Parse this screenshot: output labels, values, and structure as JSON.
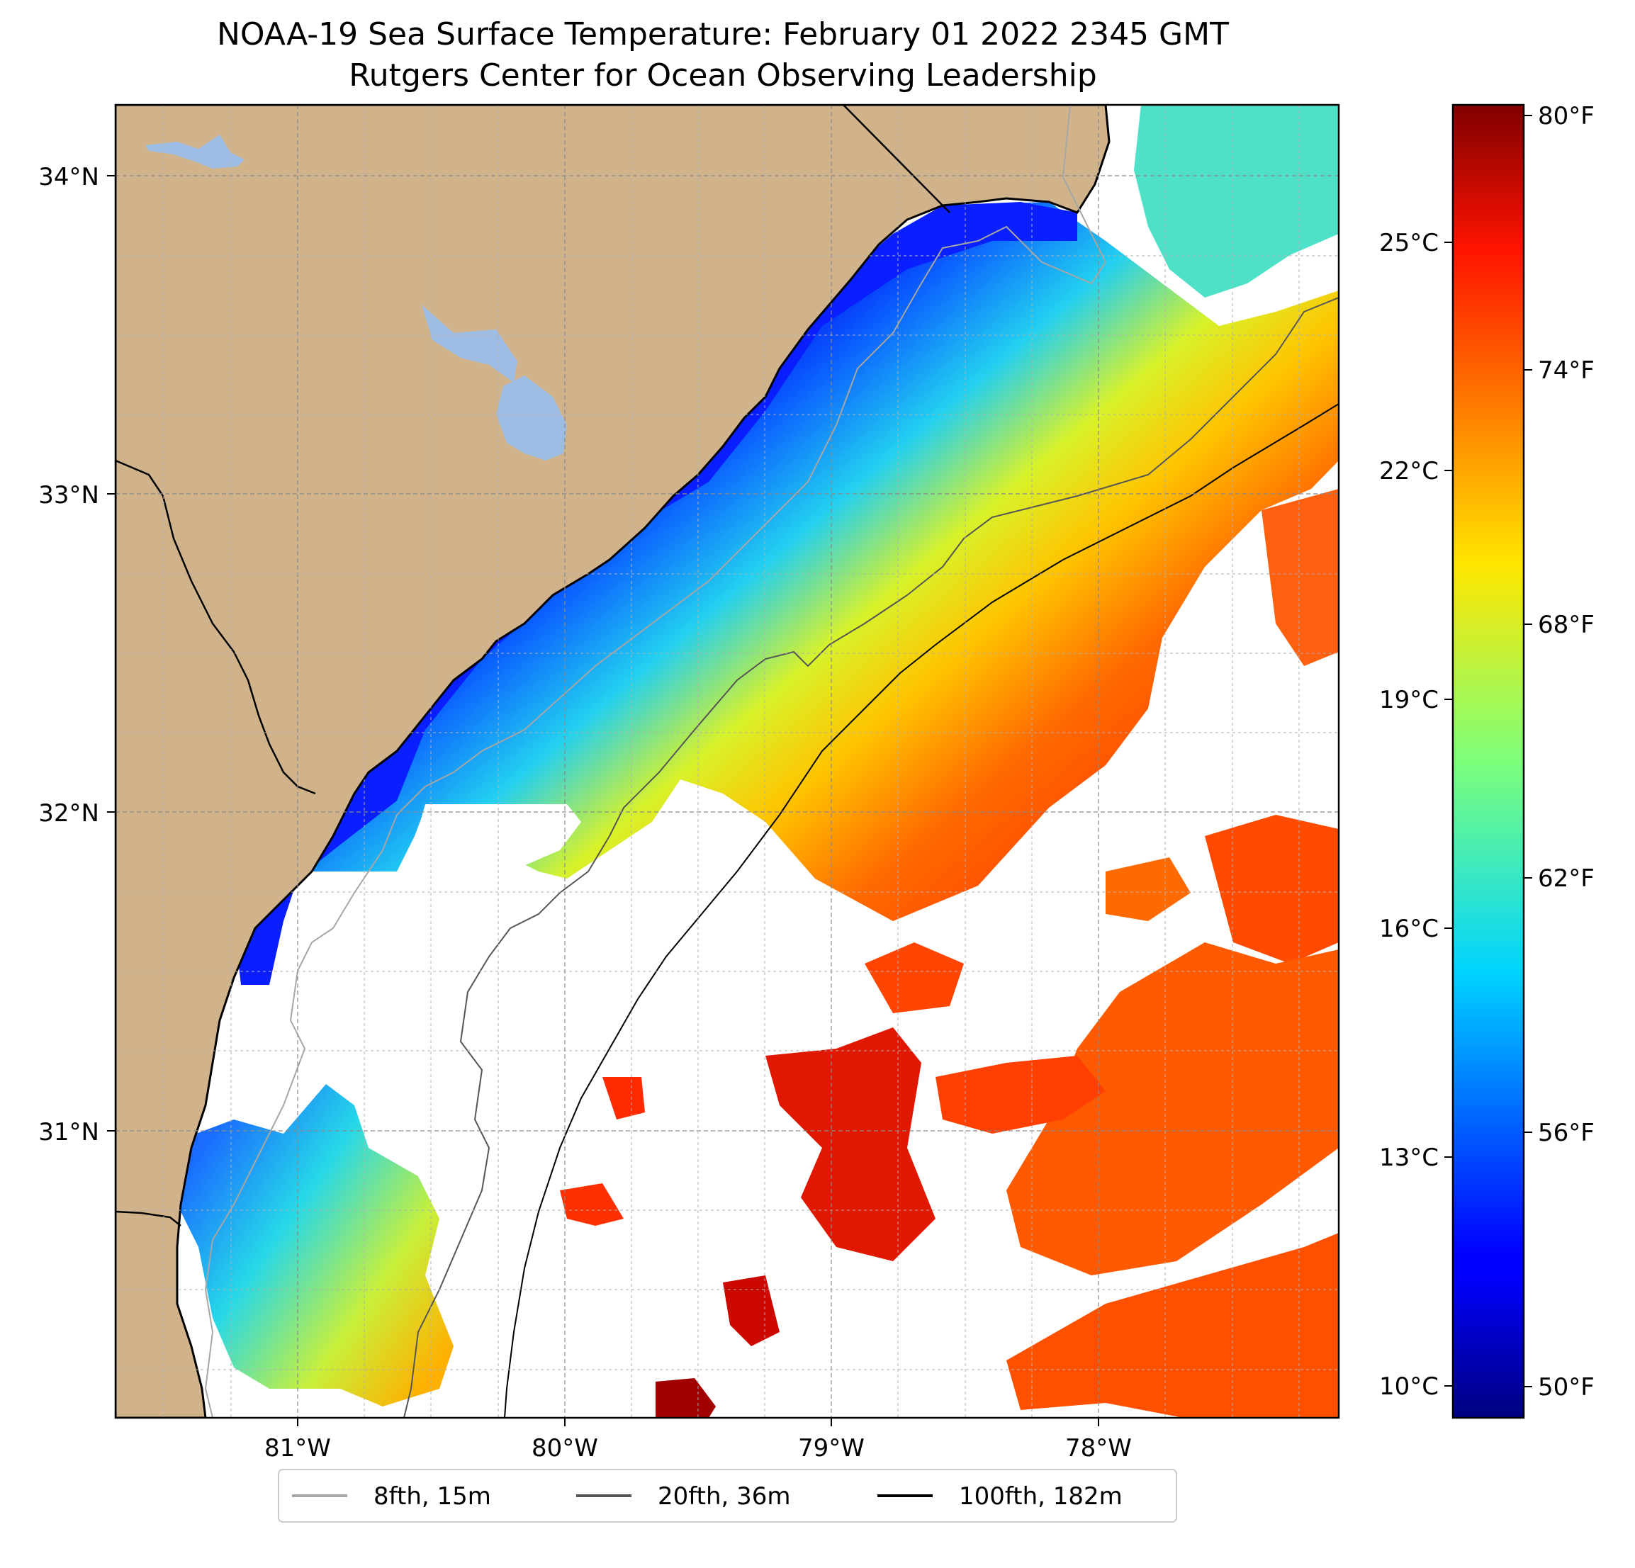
{
  "title": {
    "line1": "NOAA-19 Sea Surface Temperature: February 01 2022 2345 GMT",
    "line2": "Rutgers Center for Ocean Observing Leadership"
  },
  "map": {
    "lon_range": [
      -81.68,
      -77.1
    ],
    "lat_range": [
      30.1,
      34.22
    ],
    "lat_ticks": [
      {
        "value": 34,
        "label": "34°N"
      },
      {
        "value": 33,
        "label": "33°N"
      },
      {
        "value": 32,
        "label": "32°N"
      },
      {
        "value": 31,
        "label": "31°N"
      }
    ],
    "lon_ticks": [
      {
        "value": -81,
        "label": "81°W"
      },
      {
        "value": -80,
        "label": "80°W"
      },
      {
        "value": -79,
        "label": "79°W"
      },
      {
        "value": -78,
        "label": "78°W"
      }
    ],
    "gridlines": true,
    "colors": {
      "land": "#d0b38a",
      "water_body": "#9ebde5",
      "missing": "#ffffff",
      "coast": "#000000"
    }
  },
  "colorbar": {
    "colormap": "jet",
    "celsius_ticks": [
      {
        "value": 25,
        "label": "25°C"
      },
      {
        "value": 22,
        "label": "22°C"
      },
      {
        "value": 19,
        "label": "19°C"
      },
      {
        "value": 16,
        "label": "16°C"
      },
      {
        "value": 13,
        "label": "13°C"
      },
      {
        "value": 10,
        "label": "10°C"
      }
    ],
    "fahrenheit_ticks": [
      {
        "value": 80,
        "label": "80°F"
      },
      {
        "value": 74,
        "label": "74°F"
      },
      {
        "value": 68,
        "label": "68°F"
      },
      {
        "value": 62,
        "label": "62°F"
      },
      {
        "value": 56,
        "label": "56°F"
      },
      {
        "value": 50,
        "label": "50°F"
      }
    ],
    "range_f": [
      49.5,
      80.5
    ]
  },
  "legend": {
    "placement": "bottom-center",
    "items": [
      {
        "label": "8fth, 15m",
        "color": "#a6a6a6"
      },
      {
        "label": "20fth, 36m",
        "color": "#555555"
      },
      {
        "label": "100fth, 182m",
        "color": "#000000"
      }
    ]
  }
}
